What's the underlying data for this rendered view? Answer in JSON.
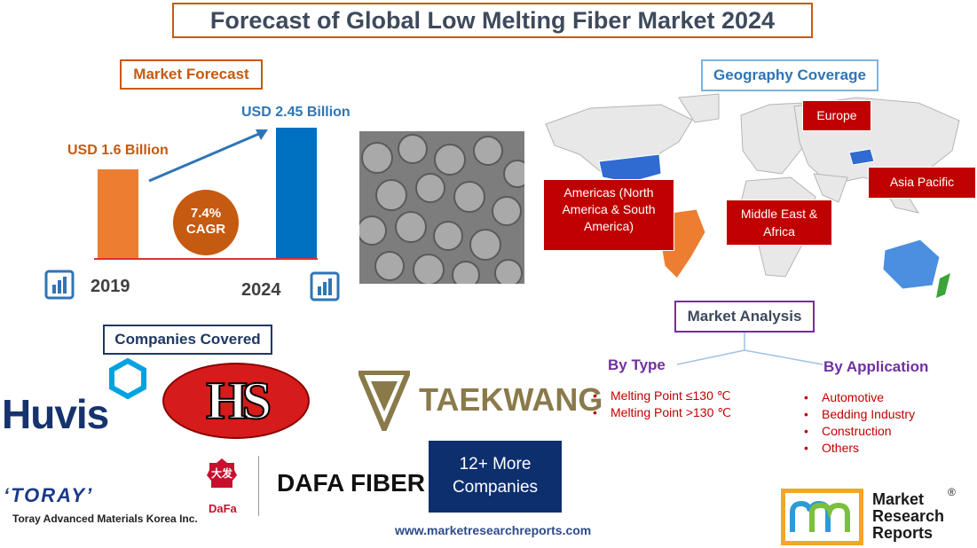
{
  "title": "Forecast of Global Low Melting Fiber Market 2024",
  "market_forecast": {
    "heading": "Market Forecast",
    "value_2019": "USD 1.6 Billion",
    "value_2024": "USD 2.45 Billion",
    "cagr_value": "7.4%",
    "cagr_label": "CAGR",
    "year_start": "2019",
    "year_end": "2024"
  },
  "chart_data": {
    "type": "bar",
    "categories": [
      "2019",
      "2024"
    ],
    "values": [
      1.6,
      2.45
    ],
    "title": "Market Forecast",
    "xlabel": "",
    "ylabel": "",
    "ylim": [
      0,
      2.5
    ]
  },
  "geography": {
    "heading": "Geography Coverage",
    "regions": {
      "europe": "Europe",
      "americas": "Americas (North America & South America)",
      "mea": "Middle East & Africa",
      "apac": "Asia Pacific"
    }
  },
  "market_analysis": {
    "heading": "Market Analysis",
    "by_type": {
      "label": "By Type",
      "items": [
        "Melting Point ≤130 ℃",
        "Melting Point >130 ℃"
      ]
    },
    "by_application": {
      "label": "By Application",
      "items": [
        "Automotive",
        "Bedding Industry",
        "Construction",
        "Others"
      ]
    }
  },
  "companies": {
    "heading": "Companies Covered",
    "huvis": "Huvis",
    "hs": "HS",
    "taekwang": "TAEKWANG",
    "toray": "‘TORAY’",
    "toray_sub": "Toray Advanced Materials Korea Inc.",
    "dafa_cn": "大发",
    "dafa_small": "DaFa",
    "dafa": "DAFA FIBER",
    "more": "12+ More Companies"
  },
  "brand": {
    "line1": "Market",
    "line2": "Research",
    "line3": "Reports",
    "reg": "®"
  },
  "url": "www.marketresearchreports.com",
  "colors": {
    "orange": "#ed7d31",
    "blue": "#0070c0",
    "region_red": "#c00000",
    "purple": "#7030a0",
    "navy": "#0d2f6e"
  }
}
